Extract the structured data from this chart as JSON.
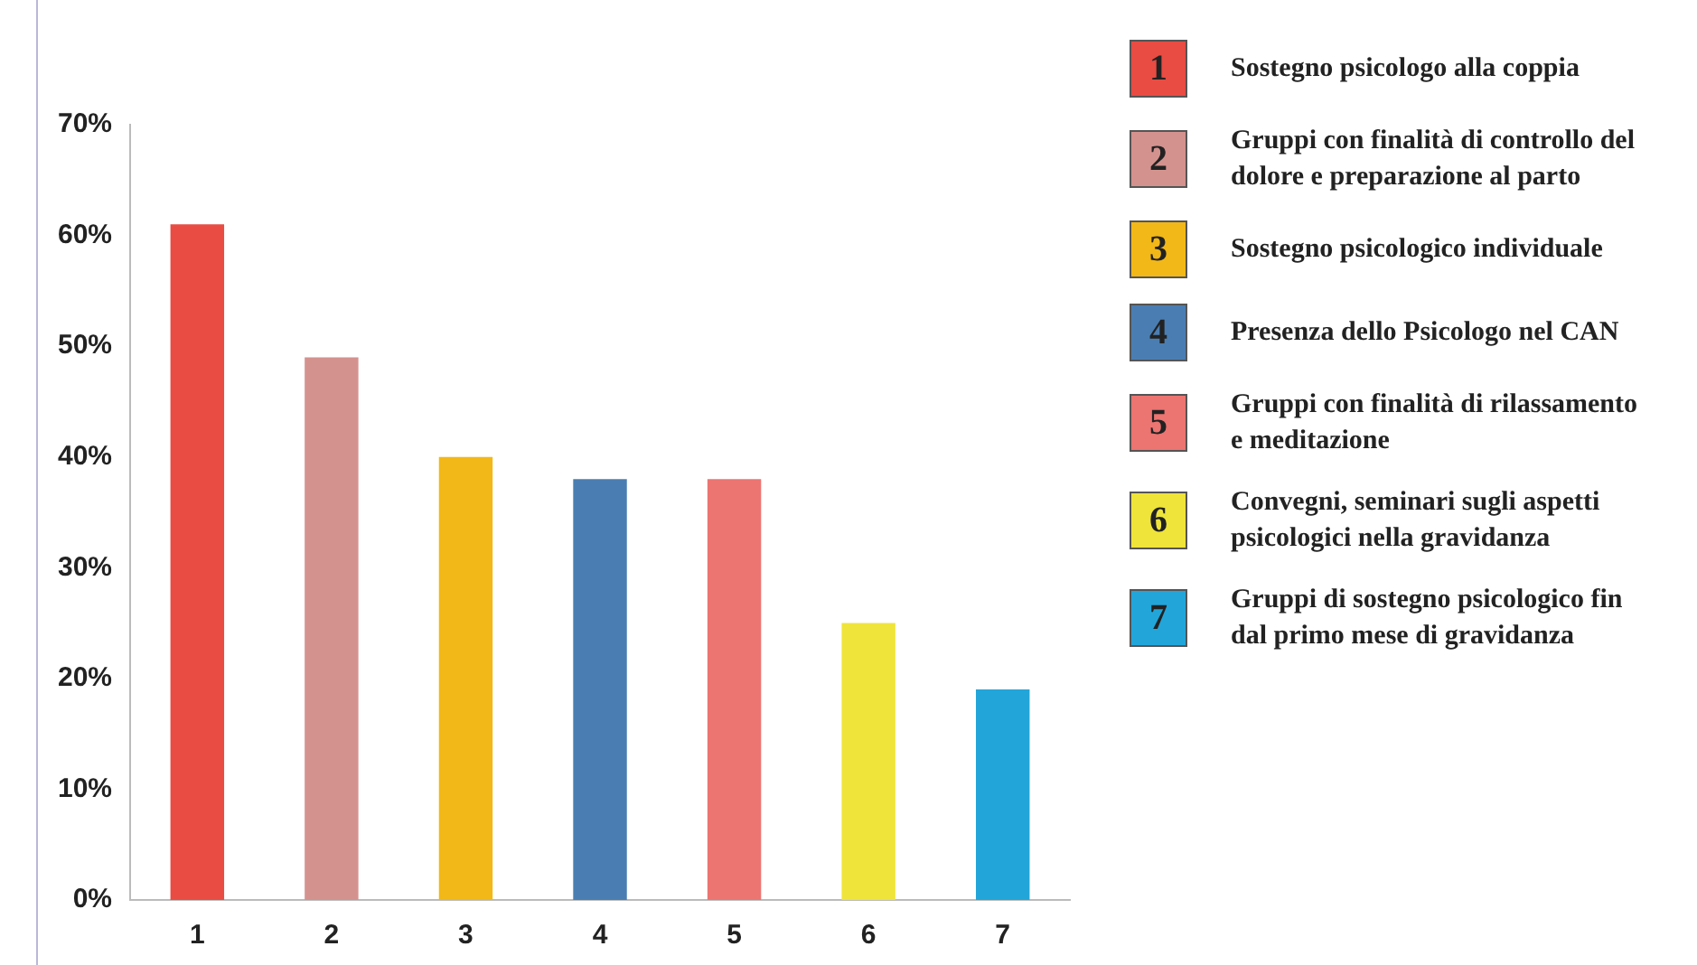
{
  "chart_data": {
    "type": "bar",
    "categories": [
      "1",
      "2",
      "3",
      "4",
      "5",
      "6",
      "7"
    ],
    "values": [
      61,
      49,
      40,
      38,
      38,
      25,
      19
    ],
    "colors": [
      "#e84c43",
      "#d4928e",
      "#f2b817",
      "#4a7eb2",
      "#ec7471",
      "#efe43a",
      "#22a6d9"
    ],
    "ylim": [
      0,
      70
    ],
    "yticks": [
      {
        "value": 0,
        "label": "0%"
      },
      {
        "value": 10,
        "label": "10%"
      },
      {
        "value": 20,
        "label": "20%"
      },
      {
        "value": 30,
        "label": "30%"
      },
      {
        "value": 40,
        "label": "40%"
      },
      {
        "value": 50,
        "label": "50%"
      },
      {
        "value": 60,
        "label": "60%"
      },
      {
        "value": 70,
        "label": "70%"
      }
    ],
    "grid": false,
    "annotations": [
      "Sostegno psicologo alla coppia",
      "Gruppi con finalità di controllo del dolore e preparazione al parto",
      "Sostegno psicologico individuale",
      "Presenza dello Psicologo nel CAN",
      "Gruppi con finalità di rilassamento e meditazione",
      "Convegni, seminari sugli aspetti psicologici nella gravidanza",
      "Gruppi di sostegno psicologico fin dal primo mese di gravidanza"
    ]
  }
}
